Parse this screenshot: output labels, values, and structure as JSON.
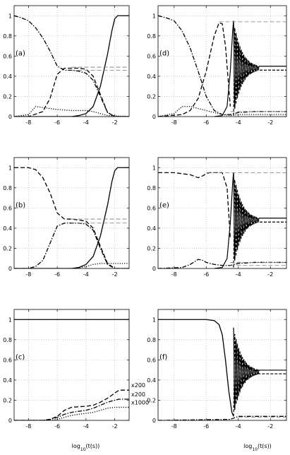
{
  "chart_data": [
    {
      "type": "line",
      "panel": "(a)",
      "xlim": [
        -9,
        -1
      ],
      "ylim": [
        0,
        1.1
      ],
      "grid": true,
      "xticks": [
        "-8",
        "-6",
        "-4",
        "-2"
      ],
      "yticks": [
        "0",
        "0.2",
        "0.4",
        "0.6",
        "0.8",
        "1"
      ],
      "series": [
        {
          "style": "solid",
          "x": [
            -9,
            -5,
            -4.5,
            -4,
            -3.5,
            -3,
            -2.5,
            -2.2,
            -2,
            -1.8,
            -1.6,
            -1
          ],
          "y": [
            0,
            0,
            0.01,
            0.03,
            0.1,
            0.3,
            0.62,
            0.85,
            0.97,
            1,
            1,
            1
          ]
        },
        {
          "style": "dashed",
          "x": [
            -9,
            -8,
            -7,
            -6.5,
            -6,
            -5.5,
            -5,
            -4.5,
            -4,
            -3.5,
            -3,
            -2.5,
            -2,
            -1
          ],
          "y": [
            0,
            0,
            0.05,
            0.18,
            0.42,
            0.48,
            0.48,
            0.48,
            0.47,
            0.4,
            0.22,
            0.04,
            0,
            0
          ]
        },
        {
          "style": "dashdot",
          "x": [
            -9,
            -8.5,
            -8,
            -7.5,
            -7,
            -6.5,
            -6,
            -5.5,
            -5,
            -4.5,
            -4,
            -3.5,
            -3,
            -2.5,
            -2,
            -1
          ],
          "y": [
            1,
            0.98,
            0.95,
            0.88,
            0.78,
            0.65,
            0.5,
            0.46,
            0.46,
            0.45,
            0.43,
            0.36,
            0.2,
            0.04,
            0,
            0
          ]
        },
        {
          "style": "dotted",
          "x": [
            -9,
            -8,
            -7.5,
            -7,
            -6.5,
            -6,
            -5,
            -4,
            -3.5,
            -3,
            -2.5,
            -1
          ],
          "y": [
            0,
            0.02,
            0.1,
            0.09,
            0.08,
            0.07,
            0.06,
            0.06,
            0.05,
            0.03,
            0.01,
            0
          ]
        },
        {
          "style": "thin-dashed",
          "x": [
            -5,
            -1
          ],
          "y": [
            0.49,
            0.49
          ]
        },
        {
          "style": "thin-dashed",
          "x": [
            -5,
            -1
          ],
          "y": [
            0.46,
            0.46
          ]
        }
      ]
    },
    {
      "type": "line",
      "panel": "(b)",
      "xlim": [
        -9,
        -1
      ],
      "ylim": [
        0,
        1.1
      ],
      "grid": true,
      "xticks": [
        "-8",
        "-6",
        "-4",
        "-2"
      ],
      "yticks": [
        "0",
        "0.2",
        "0.4",
        "0.6",
        "0.8",
        "1"
      ],
      "series": [
        {
          "style": "solid",
          "x": [
            -9,
            -5,
            -4.5,
            -4,
            -3.5,
            -3,
            -2.5,
            -2.2,
            -2,
            -1.8,
            -1.6,
            -1
          ],
          "y": [
            0,
            0,
            0.01,
            0.04,
            0.12,
            0.32,
            0.63,
            0.86,
            0.97,
            1,
            1,
            1
          ]
        },
        {
          "style": "dashed",
          "x": [
            -9,
            -8,
            -7.5,
            -7,
            -6.5,
            -6,
            -5.5,
            -5,
            -4.5,
            -4,
            -3.5,
            -3,
            -2.5,
            -2,
            -1
          ],
          "y": [
            1,
            1,
            0.98,
            0.9,
            0.75,
            0.55,
            0.49,
            0.49,
            0.48,
            0.47,
            0.4,
            0.22,
            0.05,
            0,
            0
          ]
        },
        {
          "style": "dashdot",
          "x": [
            -9,
            -8,
            -7.5,
            -7,
            -6.5,
            -6,
            -5.5,
            -5,
            -4.5,
            -4,
            -3.5,
            -3,
            -2.5,
            -2,
            -1
          ],
          "y": [
            0,
            0,
            0.02,
            0.08,
            0.25,
            0.42,
            0.45,
            0.45,
            0.45,
            0.44,
            0.38,
            0.2,
            0.04,
            0,
            0
          ]
        },
        {
          "style": "dotted",
          "x": [
            -9,
            -5,
            -4.5,
            -4,
            -3.5,
            -3,
            -2.5,
            -2,
            -1
          ],
          "y": [
            0,
            0,
            0.005,
            0.02,
            0.04,
            0.05,
            0.05,
            0.05,
            0.05
          ]
        },
        {
          "style": "thin-dashed",
          "x": [
            -5,
            -1
          ],
          "y": [
            0.49,
            0.49
          ]
        },
        {
          "style": "thin-dashed",
          "x": [
            -5,
            -1
          ],
          "y": [
            0.45,
            0.45
          ]
        }
      ]
    },
    {
      "type": "line",
      "panel": "(c)",
      "xlim": [
        -9,
        -1
      ],
      "ylim": [
        0,
        1.1
      ],
      "grid": true,
      "xticks": [
        "-8",
        "-6",
        "-4",
        "-2"
      ],
      "yticks": [
        "0",
        "0.2",
        "0.4",
        "0.6",
        "0.8",
        "1"
      ],
      "xlabel": "log10(t(s))",
      "annotations": [
        "x200",
        "x200",
        "x1000"
      ],
      "series": [
        {
          "style": "solid",
          "x": [
            -9,
            -1
          ],
          "y": [
            1,
            1
          ]
        },
        {
          "style": "dashed",
          "x": [
            -9,
            -7,
            -6.5,
            -6,
            -5.5,
            -5,
            -4,
            -3.5,
            -3,
            -2.5,
            -2,
            -1.7,
            -1.5,
            -1
          ],
          "y": [
            0,
            0,
            0.01,
            0.04,
            0.1,
            0.13,
            0.14,
            0.15,
            0.18,
            0.22,
            0.27,
            0.3,
            0.3,
            0.3
          ]
        },
        {
          "style": "dashdot",
          "x": [
            -9,
            -7,
            -6.5,
            -6,
            -5.5,
            -5,
            -4,
            -3.5,
            -3,
            -2.5,
            -2,
            -1.7,
            -1
          ],
          "y": [
            0,
            0,
            0.01,
            0.03,
            0.06,
            0.08,
            0.1,
            0.12,
            0.15,
            0.18,
            0.2,
            0.21,
            0.21
          ]
        },
        {
          "style": "dotted",
          "x": [
            -9,
            -6.5,
            -6,
            -5.5,
            -5,
            -4,
            -3.5,
            -3,
            -2.5,
            -2,
            -1.7,
            -1
          ],
          "y": [
            0,
            0,
            0.01,
            0.03,
            0.05,
            0.07,
            0.08,
            0.1,
            0.12,
            0.13,
            0.13,
            0.13
          ]
        }
      ]
    },
    {
      "type": "line",
      "panel": "(d)",
      "xlim": [
        -9,
        -1
      ],
      "ylim": [
        0,
        1.1
      ],
      "grid": true,
      "xticks": [
        "-8",
        "-6",
        "-4",
        "-2"
      ],
      "yticks": [
        "0",
        "0.2",
        "0.4",
        "0.6",
        "0.8",
        "1"
      ],
      "oscillation": {
        "start": -4.3,
        "end": -2.7,
        "center": 0.48,
        "amplitude": 0.47,
        "cycles": 10
      },
      "series": [
        {
          "style": "dashed",
          "x": [
            -9,
            -7.5,
            -7,
            -6.5,
            -6,
            -5.5,
            -5.2,
            -5,
            -4.8,
            -4.6,
            -4.5
          ],
          "y": [
            0,
            0.02,
            0.06,
            0.18,
            0.45,
            0.8,
            0.93,
            0.92,
            0.7,
            0.3,
            0.1
          ]
        },
        {
          "style": "dashdot",
          "x": [
            -9,
            -8.5,
            -8,
            -7.5,
            -7,
            -6.5,
            -6,
            -5.5,
            -5,
            -4.5,
            -4,
            -3,
            -1
          ],
          "y": [
            1,
            0.98,
            0.95,
            0.85,
            0.68,
            0.45,
            0.2,
            0.06,
            0.02,
            0.02,
            0.04,
            0.05,
            0.05
          ]
        },
        {
          "style": "dotted",
          "x": [
            -9,
            -8,
            -7.5,
            -7,
            -6.5,
            -6,
            -5.5,
            -5,
            -4.5,
            -4,
            -1
          ],
          "y": [
            0,
            0.03,
            0.1,
            0.1,
            0.08,
            0.06,
            0.04,
            0.02,
            0.01,
            0.02,
            0.02
          ]
        },
        {
          "style": "thin-dashed",
          "x": [
            -5.2,
            -1
          ],
          "y": [
            0.94,
            0.94
          ]
        },
        {
          "style": "thin-dashed",
          "x": [
            -4.5,
            -1
          ],
          "y": [
            0.05,
            0.05
          ]
        }
      ]
    },
    {
      "type": "line",
      "panel": "(e)",
      "xlim": [
        -9,
        -1
      ],
      "ylim": [
        0,
        1.1
      ],
      "grid": true,
      "xticks": [
        "-8",
        "-6",
        "-4",
        "-2"
      ],
      "yticks": [
        "0",
        "0.2",
        "0.4",
        "0.6",
        "0.8",
        "1"
      ],
      "oscillation": {
        "start": -4.3,
        "end": -2.7,
        "center": 0.48,
        "amplitude": 0.47,
        "cycles": 10
      },
      "series": [
        {
          "style": "dashed",
          "x": [
            -9,
            -8,
            -7,
            -6.5,
            -6.2,
            -6,
            -5.8,
            -5.5,
            -5,
            -4.7,
            -4.5
          ],
          "y": [
            0.95,
            0.95,
            0.93,
            0.9,
            0.92,
            0.94,
            0.95,
            0.95,
            0.95,
            0.8,
            0.3
          ]
        },
        {
          "style": "dashdot",
          "x": [
            -9,
            -7.5,
            -7,
            -6.5,
            -6.2,
            -6,
            -5.5,
            -5,
            -4.5,
            -4,
            -3,
            -1
          ],
          "y": [
            0,
            0.01,
            0.04,
            0.09,
            0.08,
            0.06,
            0.04,
            0.03,
            0.03,
            0.05,
            0.06,
            0.06
          ]
        },
        {
          "style": "thin-dashed",
          "x": [
            -6,
            -1
          ],
          "y": [
            0.95,
            0.95
          ]
        },
        {
          "style": "thin-dashed",
          "x": [
            -4.5,
            -1
          ],
          "y": [
            0.06,
            0.06
          ]
        },
        {
          "style": "thin-dashed",
          "x": [
            -4.5,
            -1
          ],
          "y": [
            0.03,
            0.03
          ]
        }
      ]
    },
    {
      "type": "line",
      "panel": "(f)",
      "xlim": [
        -9,
        -1
      ],
      "ylim": [
        0,
        1.1
      ],
      "grid": true,
      "xticks": [
        "-8",
        "-6",
        "-4",
        "-2"
      ],
      "yticks": [
        "0",
        "0.2",
        "0.4",
        "0.6",
        "0.8",
        "1"
      ],
      "xlabel": "log10(t(s))",
      "oscillation": {
        "start": -4.3,
        "end": -2.7,
        "center": 0.48,
        "amplitude": 0.44,
        "cycles": 10
      },
      "series": [
        {
          "style": "solid",
          "x": [
            -9,
            -6,
            -5.5,
            -5.2,
            -5,
            -4.8,
            -4.6,
            -4.4,
            -4.3
          ],
          "y": [
            1,
            1,
            0.99,
            0.95,
            0.85,
            0.6,
            0.3,
            0.08,
            0.04
          ]
        },
        {
          "style": "dashdot",
          "x": [
            -9,
            -4.5,
            -4,
            -3,
            -1
          ],
          "y": [
            0,
            0.01,
            0.04,
            0.04,
            0.04
          ]
        },
        {
          "style": "thin-dashed",
          "x": [
            -4,
            -1
          ],
          "y": [
            0.03,
            0.03
          ]
        }
      ]
    }
  ]
}
